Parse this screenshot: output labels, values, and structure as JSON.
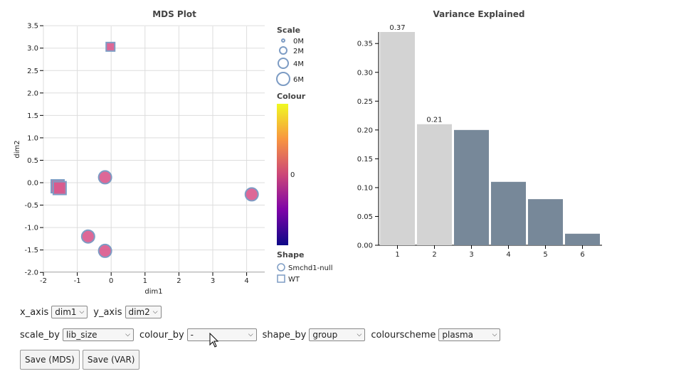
{
  "mds": {
    "title": "MDS Plot",
    "xlabel": "dim1",
    "ylabel": "dim2",
    "xticks": [
      "-2",
      "-1",
      "0",
      "1",
      "2",
      "3",
      "4"
    ],
    "yticks": [
      "3.5",
      "3.0",
      "2.5",
      "2.0",
      "1.5",
      "1.0",
      "0.5",
      "0.0",
      "-0.5",
      "-1.0",
      "-1.5",
      "-2.0"
    ],
    "points": [
      {
        "shape": "square",
        "x": -0.02,
        "y": 3.03,
        "size": "sm"
      },
      {
        "shape": "circle",
        "x": -0.18,
        "y": 0.12,
        "size": "lg"
      },
      {
        "shape": "square",
        "x": -1.58,
        "y": -0.08,
        "size": "lg"
      },
      {
        "shape": "square",
        "x": -1.52,
        "y": -0.12,
        "size": "lg"
      },
      {
        "shape": "circle",
        "x": 4.15,
        "y": -0.26,
        "size": "lg"
      },
      {
        "shape": "circle",
        "x": -0.68,
        "y": -1.2,
        "size": "lg"
      },
      {
        "shape": "circle",
        "x": -0.18,
        "y": -1.52,
        "size": "lg"
      }
    ],
    "point_fill": "#d9588c",
    "point_stroke": "#7d9cc4"
  },
  "legend": {
    "scale_title": "Scale",
    "scale_items": [
      "0M",
      "2M",
      "4M",
      "6M"
    ],
    "colour_title": "Colour",
    "colour_tick": "0",
    "shape_title": "Shape",
    "shape_items": [
      {
        "shape": "circle",
        "label": "Smchd1-null"
      },
      {
        "shape": "square",
        "label": "WT"
      }
    ]
  },
  "variance": {
    "title": "Variance Explained",
    "chart_data": {
      "type": "bar",
      "categories": [
        "1",
        "2",
        "3",
        "4",
        "5",
        "6"
      ],
      "values": [
        0.37,
        0.21,
        0.2,
        0.11,
        0.08,
        0.02
      ],
      "ylim": [
        0,
        0.37
      ],
      "yticks": [
        "0.35",
        "0.30",
        "0.25",
        "0.20",
        "0.15",
        "0.10",
        "0.05",
        "0.00"
      ],
      "highlighted": [
        true,
        true,
        false,
        false,
        false,
        false
      ],
      "data_labels": [
        "0.37",
        "0.21",
        "",
        "",
        "",
        ""
      ],
      "highlight_color": "#d3d3d3",
      "bar_color": "#778899"
    }
  },
  "controls": {
    "x_axis_label": "x_axis",
    "x_axis_value": "dim1",
    "y_axis_label": "y_axis",
    "y_axis_value": "dim2",
    "scale_by_label": "scale_by",
    "scale_by_value": "lib_size",
    "colour_by_label": "colour_by",
    "colour_by_value": "-",
    "shape_by_label": "shape_by",
    "shape_by_value": "group",
    "colourscheme_label": "colourscheme",
    "colourscheme_value": "plasma",
    "save_mds": "Save (MDS)",
    "save_var": "Save (VAR)"
  }
}
